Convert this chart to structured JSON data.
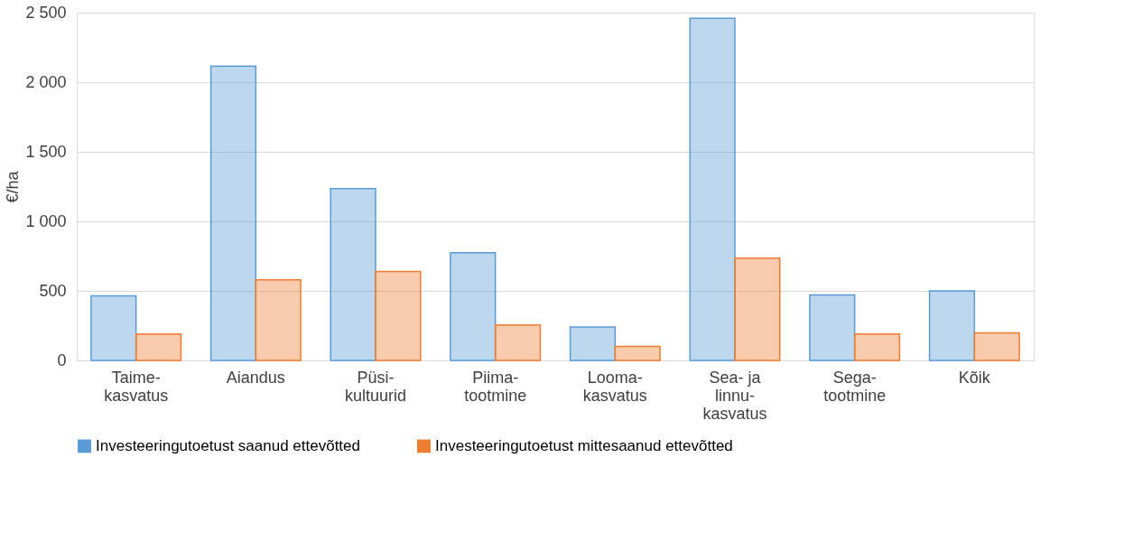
{
  "chart_data": {
    "type": "bar",
    "ylabel": "€/ha",
    "categories": [
      "Taime-\nkasvatus",
      "Aiandus",
      "Püsi-\nkultuurid",
      "Piima-\ntootmine",
      "Looma-\nkasvatus",
      "Sea- ja\nlinnu-\nkasvatus",
      "Sega-\ntootmine",
      "Kõik"
    ],
    "series": [
      {
        "name": "Investeeringutoetust saanud ettevõtted",
        "color": "#5b9bd5",
        "values": [
          465,
          2115,
          1235,
          775,
          240,
          2460,
          470,
          500
        ]
      },
      {
        "name": "Investeeringutoetust mittesaanud ettevõtted",
        "color": "#ed7d31",
        "values": [
          190,
          580,
          640,
          255,
          100,
          735,
          190,
          198
        ]
      }
    ],
    "ylim": [
      0,
      2500
    ],
    "yticks": [
      0,
      500,
      {
        "value": 1000,
        "label": "1 000"
      },
      {
        "value": 1500,
        "label": "1 500"
      },
      {
        "value": 2000,
        "label": "2 000"
      },
      {
        "value": 2500,
        "label": "2 500"
      }
    ],
    "grid": "y",
    "legend": "bottom"
  }
}
